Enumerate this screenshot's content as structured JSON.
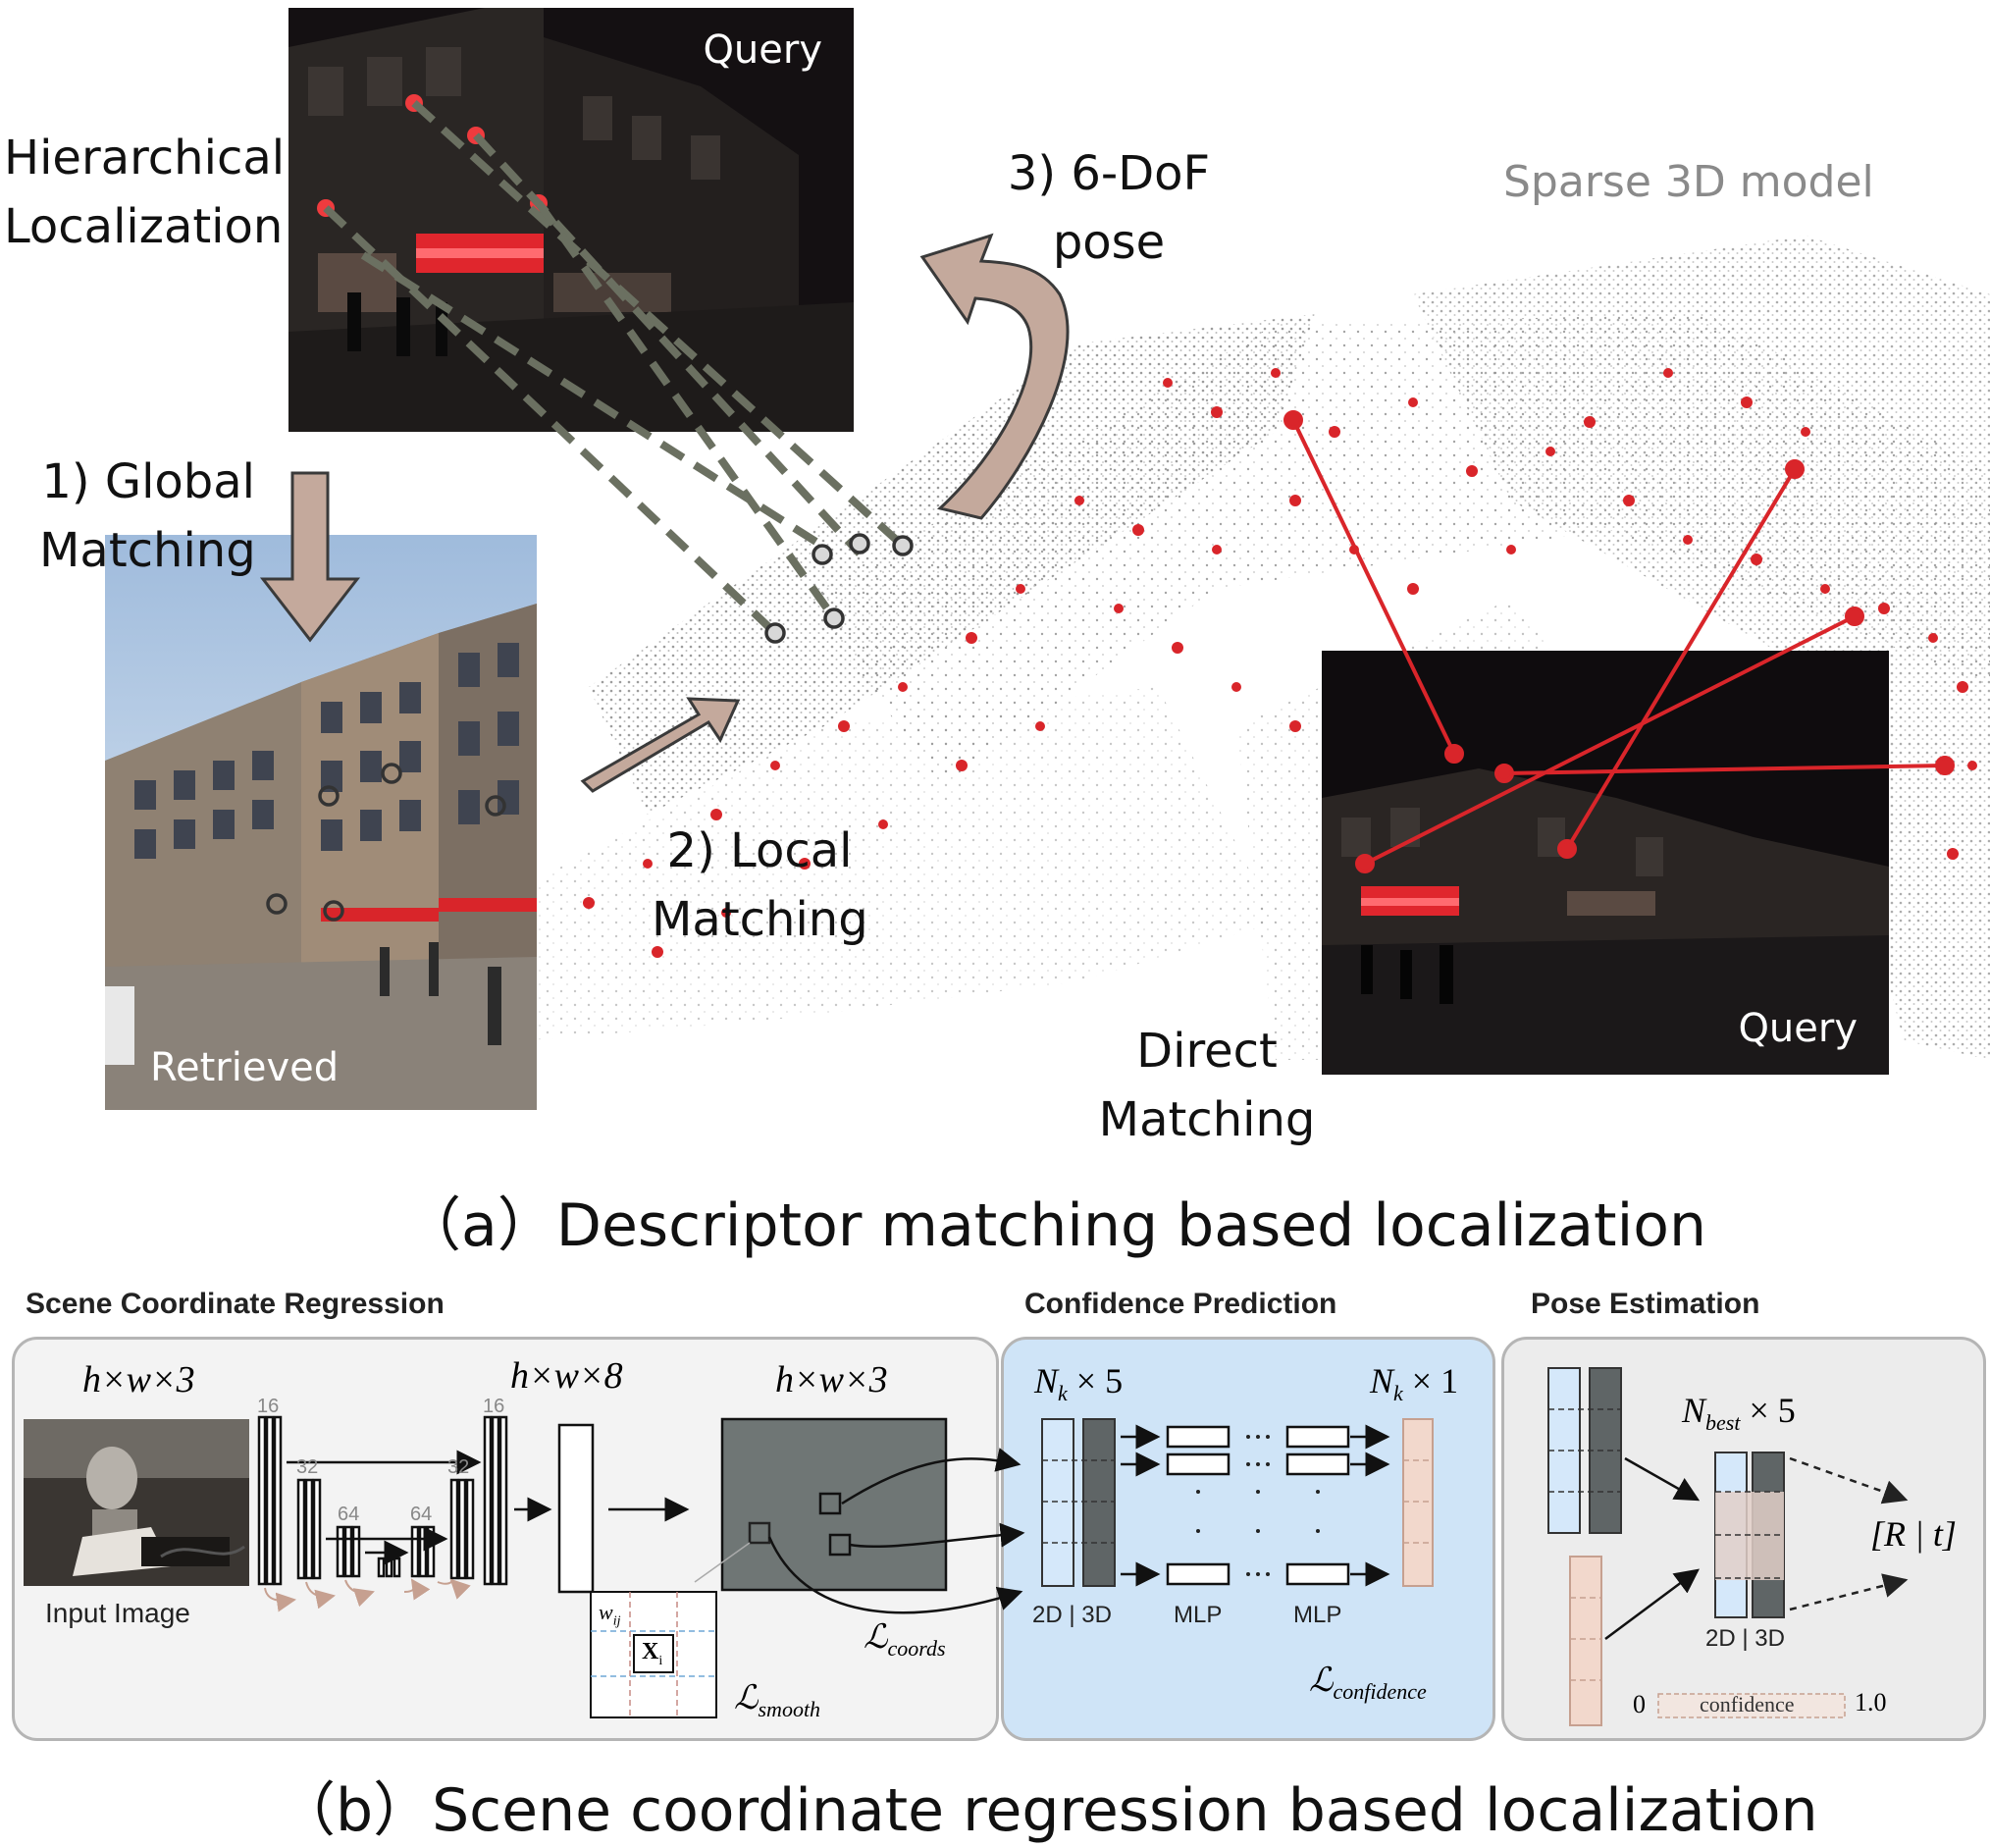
{
  "part_a": {
    "caption": "（a）Descriptor matching based localization",
    "hierarchical_label_1": "Hierarchical",
    "hierarchical_label_2": "Localization",
    "query_label_top": "Query",
    "query_label_right": "Query",
    "retrieved_label": "Retrieved",
    "global_matching_1": "1) Global",
    "global_matching_2": "Matching",
    "local_matching_1": "2) Local",
    "local_matching_2": "Matching",
    "pose_1": "3) 6-DoF",
    "pose_2": "pose",
    "sparse_model": "Sparse 3D model",
    "direct_matching_1": "Direct",
    "direct_matching_2": "Matching",
    "colors": {
      "arrow": "#c4a99c",
      "red": "#d9252a",
      "dashed": "#6b7061"
    }
  },
  "part_b": {
    "caption": "（b）Scene coordinate regression based localization",
    "scr_title": "Scene Coordinate Regression",
    "conf_title": "Confidence Prediction",
    "pose_title": "Pose Estimation",
    "dim_input": "h×w×3",
    "dim_mid": "h×w×8",
    "dim_out": "h×w×3",
    "input_image": "Input Image",
    "n16a": "16",
    "n32a": "32",
    "n64a": "64",
    "n64b": "64",
    "n32b": "32",
    "n16b": "16",
    "w_ij": "w",
    "w_sub": "ij",
    "x_i": "X",
    "x_sub": "i",
    "l_smooth": "ℒ",
    "l_smooth_sub": "smooth",
    "l_coords": "ℒ",
    "l_coords_sub": "coords",
    "nk5_a": "N",
    "nk5_sub": "k",
    "nk5_b": " × 5",
    "nk1_a": "N",
    "nk1_sub": "k",
    "nk1_b": " × 1",
    "mlp1": "MLP",
    "mlp2": "MLP",
    "two_d_three_d_conf": "2D | 3D",
    "l_conf": "ℒ",
    "l_conf_sub": "confidence",
    "nbest_a": "N",
    "nbest_sub": "best",
    "nbest_b": " × 5",
    "rt": "[R | t]",
    "two_d_three_d_pose": "2D | 3D",
    "zero": "0",
    "confidence": "confidence",
    "one": "1.0",
    "colors": {
      "conf_panel": "#cfe4f7",
      "scr_panel": "#f3f3f3",
      "pose_panel": "#ececec"
    }
  }
}
